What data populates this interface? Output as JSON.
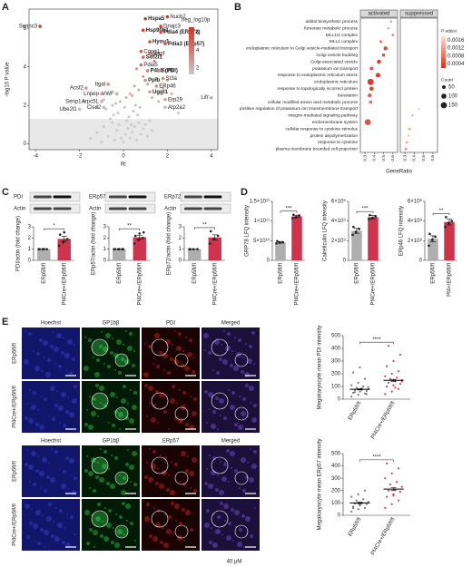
{
  "chart_data": [
    {
      "panel": "A",
      "type": "scatter",
      "xlabel": "lfc",
      "ylabel": "-log10 P value",
      "xlim": [
        -4.3,
        4.3
      ],
      "xticks": [
        -4,
        -2,
        0,
        2,
        4
      ],
      "ylim": [
        -0.3,
        7
      ],
      "yticks": [
        0,
        2,
        4,
        6
      ],
      "shaded_below": 1.3,
      "colorbar": {
        "title": "neg_log10p",
        "lim": [
          1.3,
          6.6
        ],
        "ticks": [
          2,
          4,
          6
        ],
        "colors": [
          "#c8c8c8",
          "#d7301f"
        ]
      },
      "points": {
        "x": [
          -1.2,
          -0.9,
          -0.7,
          -0.5,
          -0.4,
          -0.3,
          -0.2,
          -0.1,
          0,
          0.1,
          0.15,
          0.2,
          0.3,
          0.35,
          0.4,
          0.5,
          0.6,
          0.7,
          0.8,
          0.9,
          1.0,
          1.1,
          1.3,
          -1.5,
          -0.6,
          -0.25,
          0.05,
          0.25,
          0.45,
          0.65,
          -0.8,
          -0.35,
          0.12,
          0.55,
          -1.0,
          0.75,
          -0.15,
          0.3,
          1.2,
          -0.45,
          1.5,
          1.8,
          2.2,
          0.6,
          0.9,
          1.4,
          -0.9,
          -1.2,
          0.5,
          1.1,
          2.5,
          1.6,
          0.7,
          -0.5,
          1.3,
          2.0,
          0.4,
          1.7
        ],
        "y": [
          0.6,
          0.9,
          0.4,
          1.1,
          0.2,
          0.7,
          1.0,
          0.3,
          0.1,
          0.5,
          1.2,
          0.8,
          0.3,
          1.0,
          0.6,
          0.9,
          0.2,
          1.1,
          0.5,
          0.8,
          1.0,
          0.4,
          0.7,
          0.3,
          1.3,
          1.6,
          1.9,
          1.4,
          1.7,
          1.5,
          1.8,
          2.1,
          2.4,
          2.0,
          0.1,
          1.9,
          2.2,
          2.6,
          1.2,
          1.5,
          3.4,
          2.9,
          2.6,
          3.9,
          3.5,
          4.3,
          2.3,
          1.9,
          3.0,
          3.1,
          1.6,
          2.2,
          2.8,
          2.0,
          2.4,
          3.3,
          2.5,
          4.6
        ]
      },
      "labeled": {
        "labels": [
          "Serinc3",
          "Hspa5",
          "Nucb2",
          "Dnajc3",
          "Hsp90b1",
          "Pdia4 (ERp72)",
          "Hyou1",
          "Pdia3 (ERp57)",
          "Copg1",
          "Manf",
          "Sdf2l1",
          "Pdia5",
          "P4hb (PDI)",
          "Surf4",
          "Ppib",
          "St3a",
          "ERp46",
          "Uggt1",
          "Erp29",
          "Atp2a2",
          "Lifr",
          "Acsf2",
          "Itgal",
          "Lnpep",
          "Senp1",
          "VWF",
          "Arpc5L",
          "Ube2l1",
          "Cisd2"
        ],
        "x": [
          -3.8,
          1.0,
          2.0,
          1.7,
          0.9,
          1.7,
          1.2,
          1.9,
          0.8,
          1.2,
          0.9,
          0.8,
          1.1,
          1.6,
          1.0,
          1.8,
          1.5,
          1.2,
          1.9,
          1.9,
          4.0,
          -1.7,
          -0.7,
          -1.0,
          -1.8,
          -0.3,
          -1.0,
          -2.0,
          -0.9
        ],
        "y": [
          6.1,
          6.5,
          6.6,
          6.1,
          5.9,
          5.8,
          5.3,
          5.2,
          4.8,
          4.7,
          4.5,
          4.1,
          3.8,
          3.8,
          3.3,
          3.4,
          3.0,
          2.7,
          2.3,
          1.9,
          2.4,
          2.9,
          3.1,
          2.6,
          2.2,
          2.6,
          2.2,
          1.8,
          1.9
        ],
        "bold": [
          false,
          true,
          false,
          false,
          true,
          true,
          true,
          true,
          false,
          false,
          true,
          false,
          true,
          false,
          true,
          false,
          false,
          true,
          false,
          false,
          false,
          false,
          false,
          false,
          false,
          false,
          false,
          false,
          false
        ]
      }
    },
    {
      "panel": "B",
      "type": "dot",
      "xlabel": "GeneRatio",
      "xlim": [
        0.25,
        0.65
      ],
      "xticks": [
        0.3,
        0.4,
        0.5,
        0.6
      ],
      "categories": [
        "alditol biosynthetic process",
        "fumarate metabolic process",
        "MLL1/2 complex",
        "MLL1 complex",
        "endoplasmic reticulum to Golgi vesicle-mediated transport",
        "Golgi vesicle budding",
        "Golgi-associated vesicle",
        "potassium ion transport",
        "response to endoplasmic reticulum stress",
        "endoplasmic reticulum",
        "response to topologically incorrect protein",
        "translation",
        "cellular modified amino acid metabolic process",
        "positive regulation of potassium ion transmembrane transport",
        "integrin-mediated signaling pathway",
        "endomembrane system",
        "cellular response to cytokine stimulus",
        "protein depolymerization",
        "response to cytokine",
        "plasma membrane bounded cell projection"
      ],
      "series": [
        {
          "name": "activated",
          "values": [
            0.58,
            0.55,
            0.6,
            0.47,
            0.52,
            0.5,
            0.45,
            0.37,
            0.44,
            0.36,
            0.37,
            0.35,
            0.36,
            null,
            null,
            0.33,
            null,
            null,
            null,
            null
          ],
          "counts": [
            20,
            20,
            25,
            30,
            60,
            40,
            70,
            50,
            80,
            150,
            70,
            60,
            40,
            null,
            null,
            140,
            null,
            null,
            null,
            null
          ],
          "p_adjust": [
            0.0012,
            0.0012,
            0.001,
            0.0008,
            0.0004,
            0.0005,
            0.0004,
            0.0006,
            0.0003,
            0.0003,
            0.0004,
            0.0006,
            0.0007,
            null,
            null,
            0.0005,
            null,
            null,
            null,
            null
          ]
        },
        {
          "name": "suppressed",
          "values": [
            null,
            null,
            null,
            null,
            null,
            null,
            null,
            null,
            null,
            null,
            null,
            null,
            null,
            0.45,
            0.38,
            null,
            0.35,
            0.34,
            0.32,
            0.31
          ],
          "counts": [
            null,
            null,
            null,
            null,
            null,
            null,
            null,
            null,
            null,
            null,
            null,
            null,
            null,
            15,
            20,
            null,
            25,
            20,
            25,
            30
          ],
          "p_adjust": [
            null,
            null,
            null,
            null,
            null,
            null,
            null,
            null,
            null,
            null,
            null,
            null,
            null,
            0.0016,
            0.0014,
            null,
            0.0012,
            0.0015,
            0.0013,
            0.0011
          ]
        }
      ],
      "color_legend": {
        "title": "P adjust",
        "lim": [
          0.0002,
          0.0018
        ],
        "ticks": [
          0.0016,
          0.0012,
          0.0008,
          0.0004
        ],
        "colors": [
          "#d7301f",
          "#fde0d0"
        ]
      },
      "size_legend": {
        "title": "Count",
        "values": [
          50,
          100,
          150
        ]
      }
    },
    {
      "panel": "C",
      "type": "bar",
      "blot": [
        "PDI",
        "Actin"
      ],
      "ylabel": "PDI/actin (fold change)",
      "categories": [
        "ERp5fl/fl",
        "Pf4Cre+/ERp5fl/fl"
      ],
      "colors": [
        "#a0a0a0",
        "#c8102e"
      ],
      "ylim": [
        0,
        3
      ],
      "yticks": [
        0,
        1,
        2,
        3
      ],
      "values": [
        1,
        1.92
      ],
      "errors": [
        0,
        0.22
      ],
      "points": [
        [
          1,
          1,
          1,
          1,
          1
        ],
        [
          1.3,
          1.6,
          1.9,
          2.3,
          2.5
        ]
      ],
      "sig": "*"
    },
    {
      "type": "bar",
      "blot": [
        "ERp57",
        "Actin"
      ],
      "ylabel": "ERp57/actin (fold change)",
      "categories": [
        "ERp5fl/fl",
        "Pf4Cre+/ERp5fl/fl"
      ],
      "colors": [
        "#a0a0a0",
        "#c8102e"
      ],
      "ylim": [
        0,
        3
      ],
      "yticks": [
        0,
        1,
        2,
        3
      ],
      "values": [
        1,
        2.07
      ],
      "errors": [
        0,
        0.16
      ],
      "points": [
        [
          1,
          1,
          1,
          1,
          1,
          1
        ],
        [
          1.5,
          1.8,
          2.0,
          2.2,
          2.4,
          2.5
        ]
      ],
      "sig": "**"
    },
    {
      "type": "bar",
      "blot": [
        "ERp72",
        "Actin"
      ],
      "ylabel": "ERp72/actin (fold change)",
      "categories": [
        "ERp5fl/fl",
        "Pf4Cre+/ERp5fl/fl"
      ],
      "colors": [
        "#a0a0a0",
        "#c8102e"
      ],
      "ylim": [
        0,
        3
      ],
      "yticks": [
        0,
        1,
        2,
        3
      ],
      "values": [
        1,
        2.05
      ],
      "errors": [
        0,
        0.23
      ],
      "points": [
        [
          1,
          1,
          1,
          1
        ],
        [
          1.5,
          1.9,
          2.2,
          2.6
        ]
      ],
      "sig": "**"
    },
    {
      "panel": "D",
      "type": "bar",
      "ylabel": "GRP78 LFQ intensity",
      "categories": [
        "ERp5fl/fl",
        "Pf4Cre+/ERp5fl/fl"
      ],
      "colors": [
        "#a0a0a0",
        "#c8102e"
      ],
      "ylim": [
        0,
        150000000000
      ],
      "yticks": [
        0,
        {
          "value": 50000000000,
          "label": "5×10¹⁰"
        },
        {
          "value": 100000000000,
          "label": "1×10¹¹"
        },
        {
          "value": 150000000000,
          "label": "1.5×10¹¹"
        }
      ],
      "values": [
        46000000000,
        112000000000
      ],
      "errors": [
        2000000000,
        3000000000
      ],
      "points": [
        [
          43000000000,
          45000000000,
          46000000000,
          49000000000
        ],
        [
          107000000000,
          110000000000,
          114000000000,
          116000000000
        ]
      ],
      "sig": "***"
    },
    {
      "type": "bar",
      "ylabel": "Calreticulin LFQ intensity",
      "categories": [
        "ERp5fl/fl",
        "Pf4Cre+/ERp5fl/fl"
      ],
      "colors": [
        "#a0a0a0",
        "#c8102e"
      ],
      "ylim": [
        0,
        6000000000
      ],
      "yticks": [
        0,
        {
          "value": 2000000000,
          "label": "2×10⁹"
        },
        {
          "value": 4000000000,
          "label": "4×10⁹"
        },
        {
          "value": 6000000000,
          "label": "6×10⁹"
        }
      ],
      "values": [
        3000000000,
        4400000000
      ],
      "errors": [
        250000000,
        150000000
      ],
      "points": [
        [
          2600000000,
          2900000000,
          3200000000,
          3400000000
        ],
        [
          4200000000,
          4300000000,
          4500000000,
          4600000000
        ]
      ],
      "sig": "***"
    },
    {
      "type": "bar",
      "ylabel": "ERp46 LFQ intensity",
      "categories": [
        "ERp5fl/fl",
        "Pf4+/ERp5fl/fl"
      ],
      "colors": [
        "#a0a0a0",
        "#c8102e"
      ],
      "ylim": [
        0,
        600000000
      ],
      "yticks": [
        0,
        {
          "value": 200000000,
          "label": "2×10⁸"
        },
        {
          "value": 400000000,
          "label": "4×10⁸"
        },
        {
          "value": 600000000,
          "label": "6×10⁸"
        }
      ],
      "values": [
        220000000,
        390000000
      ],
      "errors": [
        30000000,
        30000000
      ],
      "points": [
        [
          150000000,
          210000000,
          240000000,
          270000000
        ],
        [
          340000000,
          380000000,
          400000000,
          440000000
        ]
      ],
      "sig": "**"
    },
    {
      "type": "mean_dot",
      "ylabel": "Megakaryocyte mean PDI intensity",
      "categories": [
        "ERp5fl/fl",
        "Pf4Cre+/ERp5fl/fl"
      ],
      "colors": [
        "#555555",
        "#c8102e"
      ],
      "ylim": [
        0,
        500
      ],
      "yticks": [
        0,
        100,
        200,
        300,
        400,
        500
      ],
      "values": [
        78,
        148
      ],
      "errors": [
        5,
        8
      ],
      "points": [
        [
          20,
          35,
          45,
          50,
          60,
          65,
          70,
          75,
          80,
          90,
          100,
          110,
          130,
          160,
          210,
          250,
          40,
          55,
          85,
          95
        ],
        [
          40,
          60,
          80,
          100,
          110,
          120,
          130,
          140,
          150,
          160,
          170,
          180,
          200,
          220,
          260,
          300,
          350,
          420,
          90,
          140
        ]
      ],
      "sig": "****"
    },
    {
      "type": "mean_dot",
      "ylabel": "Megakaryocyte mean ERp57 intensity",
      "categories": [
        "ERp5fl/fl",
        "Pf4Cre+/ERp5fl/fl"
      ],
      "colors": [
        "#555555",
        "#c8102e"
      ],
      "ylim": [
        0,
        500
      ],
      "yticks": [
        0,
        100,
        200,
        300,
        400,
        500
      ],
      "values": [
        100,
        212
      ],
      "errors": [
        6,
        12
      ],
      "points": [
        [
          30,
          50,
          60,
          70,
          80,
          90,
          95,
          100,
          110,
          120,
          130,
          150,
          170,
          200,
          60,
          85
        ],
        [
          60,
          90,
          120,
          150,
          170,
          190,
          200,
          210,
          230,
          250,
          270,
          300,
          340,
          380,
          420,
          160
        ]
      ],
      "sig": "****"
    }
  ],
  "figure": {
    "panel": "E",
    "scale_label": "40 μM",
    "blocks": [
      {
        "columns": [
          "Hoechst",
          "GP1bβ",
          "PDI",
          "Merged"
        ],
        "rows": [
          "ERp5fl/fl",
          "Pf4Cre+/ERp5fl/fl"
        ]
      },
      {
        "columns": [
          "Hoechst",
          "GP1bβ",
          "ERp57",
          "Merged"
        ],
        "rows": [
          "ERp5fl/fl",
          "Pf4Cre+/ERp5fl/fl"
        ]
      }
    ]
  }
}
